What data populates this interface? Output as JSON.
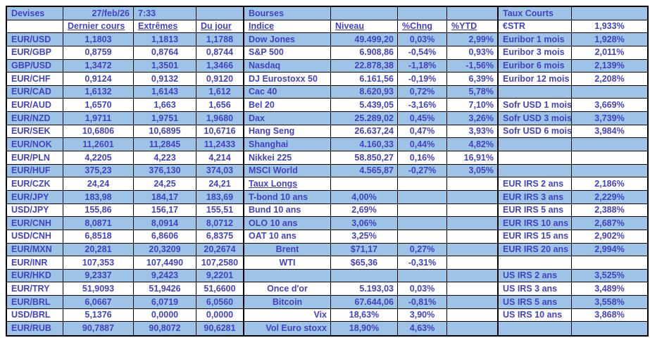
{
  "meta": {
    "date": "27/feb/26",
    "time": "7:33"
  },
  "colors": {
    "row_fill": "#9DC3E6",
    "ink": "#4242C6",
    "grid_line": "#000000",
    "background": "#FFFFFF"
  },
  "sections": {
    "devises": "Devises",
    "bourses": "Bourses",
    "taux_courts": "Taux Courts",
    "taux_longs": "Taux Longs"
  },
  "grid": {
    "rows": [
      [
        {
          "t": "Devises",
          "n": "section-title-devises"
        },
        {
          "t": "27/feb/26",
          "a": "r",
          "n": "date-cell"
        },
        {
          "t": "7:33",
          "a": "l",
          "n": "time-cell"
        },
        null,
        {
          "t": "Bourses",
          "n": "section-title-bourses"
        },
        null,
        null,
        null,
        {
          "t": "Taux Courts",
          "n": "section-title-taux-courts"
        },
        null
      ],
      [
        null,
        {
          "t": "Dernier cours",
          "a": "l",
          "u": true,
          "n": "col-header-dernier-cours"
        },
        {
          "t": "Extrêmes",
          "a": "l",
          "u": true,
          "n": "col-header-extremes"
        },
        {
          "t": "Du jour",
          "a": "l",
          "u": true,
          "n": "col-header-du-jour"
        },
        {
          "t": "Indice",
          "u": true,
          "n": "col-header-indice"
        },
        {
          "t": "Niveau",
          "a": "l",
          "u": true,
          "n": "col-header-niveau"
        },
        {
          "t": "%Chng",
          "a": "l",
          "u": true,
          "n": "col-header-chng"
        },
        {
          "t": "%YTD",
          "a": "l",
          "u": true,
          "n": "col-header-ytd"
        },
        {
          "t": "€STR",
          "n": "rate-name-cell"
        },
        {
          "t": "1,933%",
          "n": "rate-value-cell"
        }
      ],
      [
        {
          "t": "EUR/USD"
        },
        {
          "t": "1,1803"
        },
        {
          "t": "1,1813"
        },
        {
          "t": "1,1788"
        },
        {
          "t": "Dow Jones"
        },
        {
          "t": "49.499,20"
        },
        {
          "t": "0,03%"
        },
        {
          "t": "2,99%"
        },
        {
          "t": "Euribor 1 mois"
        },
        {
          "t": "1,928%"
        }
      ],
      [
        {
          "t": "EUR/GBP"
        },
        {
          "t": "0,8759"
        },
        {
          "t": "0,8764"
        },
        {
          "t": "0,8744"
        },
        {
          "t": "S&P 500"
        },
        {
          "t": "6.908,86"
        },
        {
          "t": "-0,54%"
        },
        {
          "t": "0,93%"
        },
        {
          "t": "Euribor 3 mois"
        },
        {
          "t": "2,011%"
        }
      ],
      [
        {
          "t": "GBP/USD"
        },
        {
          "t": "1,3472"
        },
        {
          "t": "1,3501"
        },
        {
          "t": "1,3466"
        },
        {
          "t": "Nasdaq"
        },
        {
          "t": "22.878,38"
        },
        {
          "t": "-1,18%"
        },
        {
          "t": "-1,56%"
        },
        {
          "t": "Euribor 6 mois"
        },
        {
          "t": "2,139%"
        }
      ],
      [
        {
          "t": "EUR/CHF"
        },
        {
          "t": "0,9124"
        },
        {
          "t": "0,9132"
        },
        {
          "t": "0,9120"
        },
        {
          "t": "DJ Eurostoxx 50"
        },
        {
          "t": "6.161,56"
        },
        {
          "t": "-0,19%"
        },
        {
          "t": "6,39%"
        },
        {
          "t": "Euribor 12 mois"
        },
        {
          "t": "2,208%"
        }
      ],
      [
        {
          "t": "EUR/CAD"
        },
        {
          "t": "1,6132"
        },
        {
          "t": "1,6143"
        },
        {
          "t": "1,612"
        },
        {
          "t": "Cac 40"
        },
        {
          "t": "8.620,93"
        },
        {
          "t": "0,72%"
        },
        {
          "t": "5,78%"
        },
        null,
        null
      ],
      [
        {
          "t": "EUR/AUD"
        },
        {
          "t": "1,6570"
        },
        {
          "t": "1,663"
        },
        {
          "t": "1,656"
        },
        {
          "t": "Bel 20"
        },
        {
          "t": "5.439,05"
        },
        {
          "t": "-3,16%"
        },
        {
          "t": "7,10%"
        },
        {
          "t": "Sofr USD 1 mois"
        },
        {
          "t": "3,669%"
        }
      ],
      [
        {
          "t": "EUR/NZD"
        },
        {
          "t": "1,9711"
        },
        {
          "t": "1,9751"
        },
        {
          "t": "1,9680"
        },
        {
          "t": "Dax"
        },
        {
          "t": "25.289,02"
        },
        {
          "t": "0,45%"
        },
        {
          "t": "3,26%"
        },
        {
          "t": "Sofr USD 3 mois"
        },
        {
          "t": "3,739%"
        }
      ],
      [
        {
          "t": "EUR/SEK"
        },
        {
          "t": "10,6806"
        },
        {
          "t": "10,6895"
        },
        {
          "t": "10,6716"
        },
        {
          "t": "Hang Seng"
        },
        {
          "t": "26.637,24"
        },
        {
          "t": "0,47%"
        },
        {
          "t": "3,93%"
        },
        {
          "t": "Sofr USD 6 mois"
        },
        {
          "t": "3,984%"
        }
      ],
      [
        {
          "t": "EUR/NOK"
        },
        {
          "t": "11,2601"
        },
        {
          "t": "11,2845"
        },
        {
          "t": "11,2433"
        },
        {
          "t": "Shanghai"
        },
        {
          "t": "4.160,33"
        },
        {
          "t": "0,44%"
        },
        {
          "t": "4,82%"
        },
        null,
        null
      ],
      [
        {
          "t": "EUR/PLN"
        },
        {
          "t": "4,2205"
        },
        {
          "t": "4,223"
        },
        {
          "t": "4,214"
        },
        {
          "t": "Nikkei 225"
        },
        {
          "t": "58.850,27"
        },
        {
          "t": "0,16%"
        },
        {
          "t": "16,91%"
        },
        null,
        null
      ],
      [
        {
          "t": "EUR/HUF"
        },
        {
          "t": "375,23"
        },
        {
          "t": "376,130"
        },
        {
          "t": "374,03"
        },
        {
          "t": "MSCI World"
        },
        {
          "t": "4.565,87"
        },
        {
          "t": "-0,27%"
        },
        {
          "t": "3,05%"
        },
        null,
        null
      ],
      [
        {
          "t": "EUR/CZK"
        },
        {
          "t": "24,24"
        },
        {
          "t": "24,25"
        },
        {
          "t": "24,21"
        },
        {
          "t": "Taux Longs",
          "u": true,
          "n": "section-title-taux-longs"
        },
        null,
        null,
        null,
        {
          "t": "EUR IRS 2 ans"
        },
        {
          "t": "2,186%"
        }
      ],
      [
        {
          "t": "EUR/JPY"
        },
        {
          "t": "183,98"
        },
        {
          "t": "184,17"
        },
        {
          "t": "183,69"
        },
        {
          "t": "T-bond 10 ans"
        },
        {
          "t": "4,00%",
          "a": "c"
        },
        null,
        null,
        {
          "t": "EUR IRS 3 ans"
        },
        {
          "t": "2,229%"
        }
      ],
      [
        {
          "t": "USD/JPY"
        },
        {
          "t": "155,86"
        },
        {
          "t": "156,17"
        },
        {
          "t": "155,51"
        },
        {
          "t": "Bund 10 ans"
        },
        {
          "t": "2,69%",
          "a": "c"
        },
        null,
        null,
        {
          "t": "EUR IRS 5 ans"
        },
        {
          "t": "2,388%"
        }
      ],
      [
        {
          "t": "EUR/CNH"
        },
        {
          "t": "8,0871"
        },
        {
          "t": "8,0914"
        },
        {
          "t": "8,0712"
        },
        {
          "t": "OLO 10 ans"
        },
        {
          "t": "3,06%",
          "a": "c"
        },
        null,
        null,
        {
          "t": "EUR IRS 10 ans"
        },
        {
          "t": "2,687%"
        }
      ],
      [
        {
          "t": "USD/CNH"
        },
        {
          "t": "6,8518"
        },
        {
          "t": "6,8606"
        },
        {
          "t": "6,8375"
        },
        {
          "t": "OAT 10 ans"
        },
        {
          "t": "3,25%",
          "a": "c"
        },
        null,
        null,
        {
          "t": "EUR IRS 15 ans"
        },
        {
          "t": "2,902%"
        }
      ],
      [
        {
          "t": "EUR/MXN"
        },
        {
          "t": "20,281"
        },
        {
          "t": "20,3209"
        },
        {
          "t": "20,2674"
        },
        {
          "t": "Brent",
          "a": "c"
        },
        {
          "t": "$71,17",
          "a": "c"
        },
        {
          "t": "0,27%"
        },
        null,
        {
          "t": "EUR IRS 20 ans"
        },
        {
          "t": "2,994%"
        }
      ],
      [
        {
          "t": "EUR/INR"
        },
        {
          "t": "107,353"
        },
        {
          "t": "107,4490"
        },
        {
          "t": "107,2580"
        },
        {
          "t": "WTI",
          "a": "c"
        },
        {
          "t": "$65,36",
          "a": "c"
        },
        {
          "t": "-0,31%"
        },
        null,
        null,
        null
      ],
      [
        {
          "t": "EUR/HKD"
        },
        {
          "t": "9,2337"
        },
        {
          "t": "9,2423"
        },
        {
          "t": "9,2201"
        },
        null,
        null,
        null,
        null,
        {
          "t": "US IRS 2 ans"
        },
        {
          "t": "3,525%"
        }
      ],
      [
        {
          "t": "EUR/TRY"
        },
        {
          "t": "51,9093"
        },
        {
          "t": "51,9426"
        },
        {
          "t": "51,6600"
        },
        {
          "t": "Once d'or",
          "a": "c"
        },
        {
          "t": "5.193,03"
        },
        {
          "t": "0,03%"
        },
        null,
        {
          "t": "US IRS 3 ans"
        },
        {
          "t": "3,489%"
        }
      ],
      [
        {
          "t": "EUR/BRL"
        },
        {
          "t": "6,0667"
        },
        {
          "t": "6,0719"
        },
        {
          "t": "6,0560"
        },
        {
          "t": "Bitcoin",
          "a": "c"
        },
        {
          "t": "67.644,06"
        },
        {
          "t": "-0,81%"
        },
        null,
        {
          "t": "US IRS 5 ans"
        },
        {
          "t": "3,558%"
        }
      ],
      [
        {
          "t": "USD/BRL"
        },
        {
          "t": "5,1376"
        },
        {
          "t": "0,0000"
        },
        {
          "t": "0,0000"
        },
        {
          "t": "Vix",
          "a": "r"
        },
        {
          "t": "18,63%",
          "a": "c"
        },
        {
          "t": "3,90%"
        },
        null,
        {
          "t": "US IRS 10 ans"
        },
        {
          "t": "3,868%"
        }
      ],
      [
        {
          "t": "EUR/RUB"
        },
        {
          "t": "90,7887"
        },
        {
          "t": "90,8072"
        },
        {
          "t": "90,6281"
        },
        {
          "t": "Vol Euro stoxx",
          "a": "r"
        },
        {
          "t": "18,90%",
          "a": "c"
        },
        {
          "t": "4,63%"
        },
        null,
        null,
        null
      ]
    ]
  }
}
